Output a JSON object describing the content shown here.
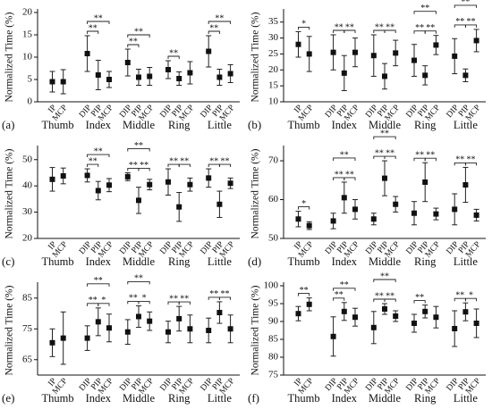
{
  "chart_data": [
    {
      "type": "errorbar",
      "panel": "(a)",
      "ylabel": "Normalized Time (%)",
      "ylim": [
        0,
        20
      ],
      "yticks": [
        0,
        5,
        10,
        15,
        20
      ],
      "groups": [
        {
          "name": "Thumb",
          "joints": [
            "IP",
            "MCP"
          ],
          "values": [
            4.5,
            4.5
          ],
          "errors": [
            2.3,
            2.7
          ],
          "brackets": []
        },
        {
          "name": "Index",
          "joints": [
            "DIP",
            "PIP",
            "MCP"
          ],
          "values": [
            10.8,
            6,
            5
          ],
          "errors": [
            4,
            3.3,
            1.8
          ],
          "brackets": [
            {
              "joints": [
                0,
                1
              ],
              "label": "**"
            },
            {
              "joints": [
                0,
                2
              ],
              "label": "**"
            }
          ]
        },
        {
          "name": "Middle",
          "joints": [
            "DIP",
            "PIP",
            "MCP"
          ],
          "values": [
            8.8,
            5.5,
            5.7
          ],
          "errors": [
            3,
            1.8,
            2
          ],
          "brackets": [
            {
              "joints": [
                0,
                1
              ],
              "label": "**"
            },
            {
              "joints": [
                0,
                2
              ],
              "label": "**"
            }
          ]
        },
        {
          "name": "Ring",
          "joints": [
            "DIP",
            "PIP",
            "MCP"
          ],
          "values": [
            7.2,
            5.2,
            6.5
          ],
          "errors": [
            2,
            1.5,
            2.5
          ],
          "brackets": [
            {
              "joints": [
                0,
                1
              ],
              "label": "**"
            }
          ]
        },
        {
          "name": "Little",
          "joints": [
            "DIP",
            "PIP",
            "MCP"
          ],
          "values": [
            11.3,
            5.5,
            6.3
          ],
          "errors": [
            3.5,
            1.8,
            2
          ],
          "brackets": [
            {
              "joints": [
                0,
                1
              ],
              "label": "**"
            },
            {
              "joints": [
                0,
                2
              ],
              "label": "**"
            }
          ]
        }
      ]
    },
    {
      "type": "errorbar",
      "panel": "(b)",
      "ylabel": "Normalized Time (%)",
      "ylim": [
        10,
        38
      ],
      "yticks": [
        10,
        15,
        20,
        25,
        30,
        35
      ],
      "groups": [
        {
          "name": "Thumb",
          "joints": [
            "IP",
            "MCP"
          ],
          "values": [
            28,
            25
          ],
          "errors": [
            4,
            5.5
          ],
          "brackets": [
            {
              "joints": [
                0,
                1
              ],
              "label": "*"
            }
          ]
        },
        {
          "name": "Index",
          "joints": [
            "DIP",
            "PIP",
            "MCP"
          ],
          "values": [
            25.5,
            19,
            25.5
          ],
          "errors": [
            5.5,
            5.5,
            4.5
          ],
          "brackets": [
            {
              "joints": [
                0,
                1
              ],
              "label": "**"
            },
            {
              "joints": [
                1,
                2
              ],
              "label": "**"
            }
          ]
        },
        {
          "name": "Middle",
          "joints": [
            "DIP",
            "PIP",
            "MCP"
          ],
          "values": [
            24.5,
            18,
            25.3
          ],
          "errors": [
            6.5,
            4,
            4
          ],
          "brackets": [
            {
              "joints": [
                0,
                1
              ],
              "label": "**"
            },
            {
              "joints": [
                1,
                2
              ],
              "label": "**"
            }
          ]
        },
        {
          "name": "Ring",
          "joints": [
            "DIP",
            "PIP",
            "MCP"
          ],
          "values": [
            23,
            18.3,
            27.8
          ],
          "errors": [
            5,
            3,
            3
          ],
          "brackets": [
            {
              "joints": [
                0,
                1
              ],
              "label": "**"
            },
            {
              "joints": [
                1,
                2
              ],
              "label": "**"
            },
            {
              "joints": [
                0,
                2
              ],
              "label": "**"
            }
          ]
        },
        {
          "name": "Little",
          "joints": [
            "DIP",
            "PIP",
            "MCP"
          ],
          "values": [
            24.3,
            18.3,
            29.2
          ],
          "errors": [
            5.5,
            2,
            3.5
          ],
          "brackets": [
            {
              "joints": [
                0,
                1
              ],
              "label": "**"
            },
            {
              "joints": [
                1,
                2
              ],
              "label": "**"
            },
            {
              "joints": [
                0,
                2
              ],
              "label": "**"
            }
          ]
        }
      ]
    },
    {
      "type": "errorbar",
      "panel": "(c)",
      "ylabel": "Normalized Time (%)",
      "ylim": [
        20,
        54
      ],
      "yticks": [
        20,
        30,
        40,
        50
      ],
      "groups": [
        {
          "name": "Thumb",
          "joints": [
            "IP",
            "MCP"
          ],
          "values": [
            42.5,
            43.8
          ],
          "errors": [
            4.5,
            3
          ],
          "brackets": []
        },
        {
          "name": "Index",
          "joints": [
            "DIP",
            "PIP",
            "MCP"
          ],
          "values": [
            44,
            38.2,
            40.3
          ],
          "errors": [
            2.5,
            3.5,
            2.5
          ],
          "brackets": [
            {
              "joints": [
                0,
                1
              ],
              "label": "**"
            },
            {
              "joints": [
                0,
                2
              ],
              "label": "**"
            }
          ]
        },
        {
          "name": "Middle",
          "joints": [
            "DIP",
            "PIP",
            "MCP"
          ],
          "values": [
            43.5,
            34.5,
            40.5
          ],
          "errors": [
            1.5,
            5,
            2
          ],
          "brackets": [
            {
              "joints": [
                0,
                1
              ],
              "label": "**"
            },
            {
              "joints": [
                1,
                2
              ],
              "label": "**"
            },
            {
              "joints": [
                0,
                2
              ],
              "label": "**"
            }
          ]
        },
        {
          "name": "Ring",
          "joints": [
            "DIP",
            "PIP",
            "MCP"
          ],
          "values": [
            41.5,
            32,
            40.5
          ],
          "errors": [
            5,
            5.5,
            2.5
          ],
          "brackets": [
            {
              "joints": [
                0,
                1
              ],
              "label": "**"
            },
            {
              "joints": [
                1,
                2
              ],
              "label": "**"
            }
          ]
        },
        {
          "name": "Little",
          "joints": [
            "DIP",
            "PIP",
            "MCP"
          ],
          "values": [
            43,
            33,
            41
          ],
          "errors": [
            3.5,
            5,
            2
          ],
          "brackets": [
            {
              "joints": [
                0,
                1
              ],
              "label": "**"
            },
            {
              "joints": [
                1,
                2
              ],
              "label": "**"
            }
          ]
        }
      ]
    },
    {
      "type": "errorbar",
      "panel": "(d)",
      "ylabel": "Normalized Time (%)",
      "ylim": [
        50,
        73
      ],
      "yticks": [
        50,
        60,
        70
      ],
      "groups": [
        {
          "name": "Thumb",
          "joints": [
            "IP",
            "MCP"
          ],
          "values": [
            55,
            53.3
          ],
          "errors": [
            2,
            1
          ],
          "brackets": [
            {
              "joints": [
                0,
                1
              ],
              "label": "*"
            }
          ]
        },
        {
          "name": "Index",
          "joints": [
            "DIP",
            "PIP",
            "MCP"
          ],
          "values": [
            54.5,
            60.5,
            57.5
          ],
          "errors": [
            2,
            4,
            2.5
          ],
          "brackets": [
            {
              "joints": [
                0,
                1
              ],
              "label": "**"
            },
            {
              "joints": [
                1,
                2
              ],
              "label": "**"
            },
            {
              "joints": [
                0,
                2
              ],
              "label": "**"
            }
          ]
        },
        {
          "name": "Middle",
          "joints": [
            "DIP",
            "PIP",
            "MCP"
          ],
          "values": [
            55,
            65.5,
            58.8
          ],
          "errors": [
            1.5,
            4.5,
            2
          ],
          "brackets": [
            {
              "joints": [
                0,
                1
              ],
              "label": "**"
            },
            {
              "joints": [
                1,
                2
              ],
              "label": "**"
            },
            {
              "joints": [
                0,
                2
              ],
              "label": "**"
            }
          ]
        },
        {
          "name": "Ring",
          "joints": [
            "DIP",
            "PIP",
            "MCP"
          ],
          "values": [
            56.5,
            64.5,
            56.3
          ],
          "errors": [
            3,
            5,
            1.5
          ],
          "brackets": [
            {
              "joints": [
                0,
                1
              ],
              "label": "**"
            },
            {
              "joints": [
                1,
                2
              ],
              "label": "**"
            }
          ]
        },
        {
          "name": "Little",
          "joints": [
            "DIP",
            "PIP",
            "MCP"
          ],
          "values": [
            57.5,
            63.8,
            56
          ],
          "errors": [
            4,
            4.5,
            1.5
          ],
          "brackets": [
            {
              "joints": [
                0,
                1
              ],
              "label": "**"
            },
            {
              "joints": [
                1,
                2
              ],
              "label": "**"
            }
          ]
        }
      ]
    },
    {
      "type": "errorbar",
      "panel": "(e)",
      "ylabel": "Normalized Time (%)",
      "ylim": [
        60,
        89
      ],
      "yticks": [
        65,
        75,
        85
      ],
      "groups": [
        {
          "name": "Thumb",
          "joints": [
            "IP",
            "MCP"
          ],
          "values": [
            70.5,
            72
          ],
          "errors": [
            4.5,
            8.5
          ],
          "brackets": []
        },
        {
          "name": "Index",
          "joints": [
            "DIP",
            "PIP",
            "MCP"
          ],
          "values": [
            72,
            77.3,
            75.3
          ],
          "errors": [
            4,
            4.5,
            4.5
          ],
          "brackets": [
            {
              "joints": [
                0,
                1
              ],
              "label": "**"
            },
            {
              "joints": [
                1,
                2
              ],
              "label": "*"
            },
            {
              "joints": [
                0,
                2
              ],
              "label": "**"
            }
          ]
        },
        {
          "name": "Middle",
          "joints": [
            "DIP",
            "PIP",
            "MCP"
          ],
          "values": [
            74,
            79,
            77.5
          ],
          "errors": [
            4,
            3.5,
            3
          ],
          "brackets": [
            {
              "joints": [
                0,
                1
              ],
              "label": "**"
            },
            {
              "joints": [
                1,
                2
              ],
              "label": "*"
            },
            {
              "joints": [
                0,
                2
              ],
              "label": "**"
            }
          ]
        },
        {
          "name": "Ring",
          "joints": [
            "DIP",
            "PIP",
            "MCP"
          ],
          "values": [
            74,
            78.3,
            75
          ],
          "errors": [
            3.5,
            4,
            4.5
          ],
          "brackets": [
            {
              "joints": [
                0,
                1
              ],
              "label": "**"
            },
            {
              "joints": [
                1,
                2
              ],
              "label": "**"
            }
          ]
        },
        {
          "name": "Little",
          "joints": [
            "DIP",
            "PIP",
            "MCP"
          ],
          "values": [
            74.5,
            80.3,
            75
          ],
          "errors": [
            4,
            3.5,
            4.5
          ],
          "brackets": [
            {
              "joints": [
                0,
                1
              ],
              "label": "**"
            },
            {
              "joints": [
                1,
                2
              ],
              "label": "**"
            }
          ]
        }
      ]
    },
    {
      "type": "errorbar",
      "panel": "(f)",
      "ylabel": "Normalized Time (%)",
      "ylim": [
        75,
        100
      ],
      "yticks": [
        75,
        80,
        85,
        90,
        95,
        100
      ],
      "groups": [
        {
          "name": "Thumb",
          "joints": [
            "IP",
            "MCP"
          ],
          "values": [
            92.2,
            94.8
          ],
          "errors": [
            2,
            1.8
          ],
          "brackets": [
            {
              "joints": [
                0,
                1
              ],
              "label": "**"
            }
          ]
        },
        {
          "name": "Index",
          "joints": [
            "DIP",
            "PIP",
            "MCP"
          ],
          "values": [
            85.8,
            92.8,
            91.2
          ],
          "errors": [
            5.5,
            2.5,
            2.5
          ],
          "brackets": [
            {
              "joints": [
                0,
                1
              ],
              "label": "**"
            },
            {
              "joints": [
                0,
                2
              ],
              "label": "**"
            }
          ]
        },
        {
          "name": "Middle",
          "joints": [
            "DIP",
            "PIP",
            "MCP"
          ],
          "values": [
            88.3,
            93.5,
            91.5
          ],
          "errors": [
            4.5,
            1.5,
            1.5
          ],
          "brackets": [
            {
              "joints": [
                0,
                1
              ],
              "label": "**"
            },
            {
              "joints": [
                1,
                2
              ],
              "label": "**"
            },
            {
              "joints": [
                0,
                2
              ],
              "label": "**"
            }
          ]
        },
        {
          "name": "Ring",
          "joints": [
            "DIP",
            "PIP",
            "MCP"
          ],
          "values": [
            89.5,
            92.8,
            91.2
          ],
          "errors": [
            2.5,
            1.8,
            3
          ],
          "brackets": [
            {
              "joints": [
                0,
                1
              ],
              "label": "**"
            }
          ]
        },
        {
          "name": "Little",
          "joints": [
            "DIP",
            "PIP",
            "MCP"
          ],
          "values": [
            88,
            92.7,
            89.5
          ],
          "errors": [
            5,
            2.5,
            4
          ],
          "brackets": [
            {
              "joints": [
                0,
                1
              ],
              "label": "**"
            },
            {
              "joints": [
                1,
                2
              ],
              "label": "*"
            }
          ]
        }
      ]
    }
  ]
}
